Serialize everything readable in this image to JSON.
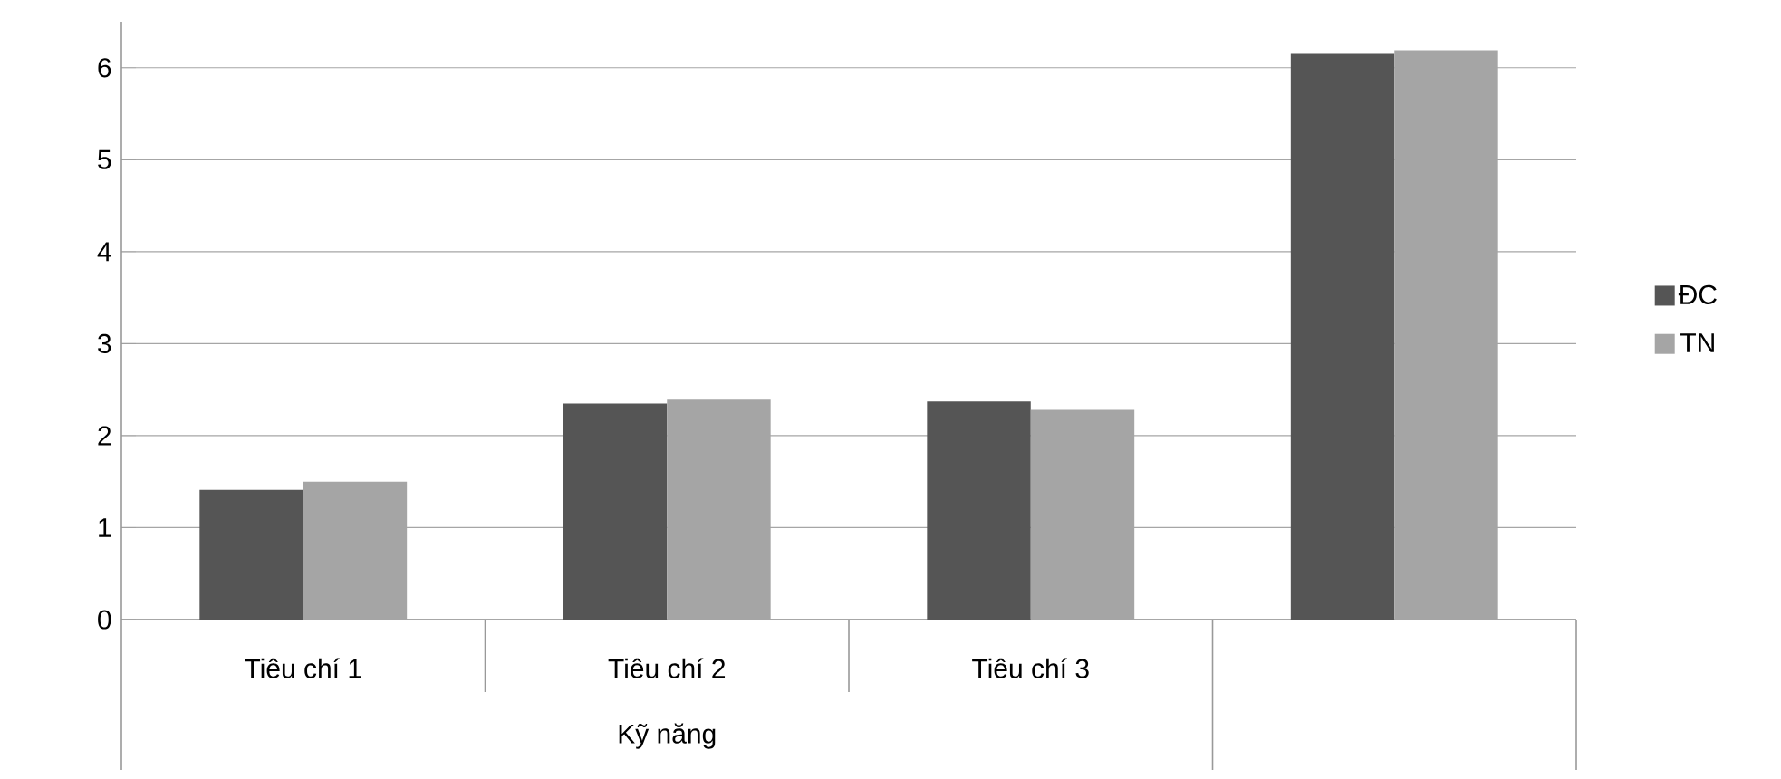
{
  "chart_data": {
    "type": "bar",
    "categories": [
      "Tiêu chí 1",
      "Tiêu chí 2",
      "Tiêu chí 3",
      null
    ],
    "xlabel": "Kỹ năng",
    "series": [
      {
        "name": "ĐC",
        "color": "#555555",
        "values": [
          1.41,
          2.35,
          2.37,
          6.15
        ]
      },
      {
        "name": "TN",
        "color": "#a5a5a5",
        "values": [
          1.5,
          2.39,
          2.28,
          6.19
        ]
      }
    ],
    "ylim": [
      0,
      6.5
    ],
    "yticks": [
      0,
      1,
      2,
      3,
      4,
      5,
      6
    ],
    "grid": "y",
    "legend": "right"
  }
}
